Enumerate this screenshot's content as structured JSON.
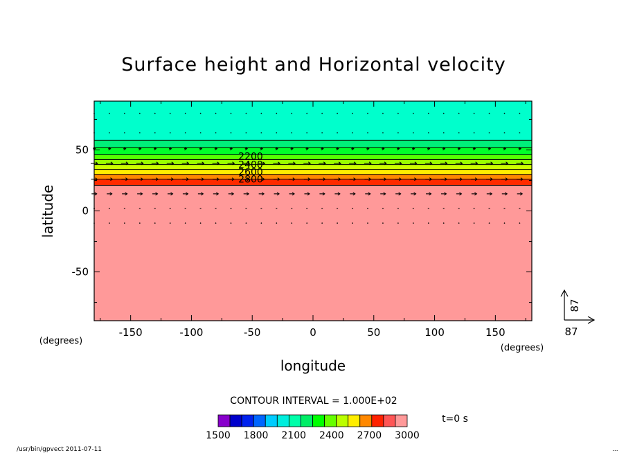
{
  "chart_data": {
    "type": "contour",
    "title": "Surface height and Horizontal velocity",
    "xlabel": "longitude",
    "ylabel": "latitude",
    "x_unit": "(degrees)",
    "y_unit": "(degrees)",
    "xlim": [
      -180,
      180
    ],
    "ylim": [
      -90,
      90
    ],
    "x_ticks": [
      "-150",
      "-100",
      "-50",
      "0",
      "50",
      "100",
      "150"
    ],
    "y_ticks": [
      "50",
      "0",
      "-50"
    ],
    "x_tick_values": [
      -150,
      -100,
      -50,
      0,
      50,
      100,
      150
    ],
    "y_tick_values": [
      50,
      0,
      -50
    ],
    "contour_interval_text": "CONTOUR INTERVAL = 1.000E+02",
    "contour_labels": [
      {
        "text": "2200",
        "lat": 45
      },
      {
        "text": "2400",
        "lat": 38
      },
      {
        "text": "2600",
        "lat": 32
      },
      {
        "text": "2800",
        "lat": 26
      }
    ],
    "height_bands": [
      {
        "lat_top": 90,
        "lat_bottom": 58,
        "color": "#00ffcc"
      },
      {
        "lat_top": 58,
        "lat_bottom": 52,
        "color": "#00f07a"
      },
      {
        "lat_top": 52,
        "lat_bottom": 46,
        "color": "#00ff2a"
      },
      {
        "lat_top": 46,
        "lat_bottom": 42,
        "color": "#55ff00"
      },
      {
        "lat_top": 42,
        "lat_bottom": 38,
        "color": "#99ff00"
      },
      {
        "lat_top": 38,
        "lat_bottom": 34,
        "color": "#ccff00"
      },
      {
        "lat_top": 34,
        "lat_bottom": 30,
        "color": "#ffee00"
      },
      {
        "lat_top": 30,
        "lat_bottom": 26,
        "color": "#ff8800"
      },
      {
        "lat_top": 26,
        "lat_bottom": 21,
        "color": "#ff2a00"
      },
      {
        "lat_top": 21,
        "lat_bottom": -90,
        "color": "#ff9999"
      }
    ],
    "contour_levels_lat": [
      58,
      52,
      46,
      42,
      38,
      34,
      30,
      26,
      21
    ],
    "vector_rows": [
      {
        "lat": 80,
        "u": 0
      },
      {
        "lat": 64,
        "u": 0.3
      },
      {
        "lat": 51,
        "u": 0.7
      },
      {
        "lat": 39,
        "u": 2.0
      },
      {
        "lat": 26,
        "u": 1.8
      },
      {
        "lat": 14,
        "u": 1.5
      },
      {
        "lat": 2,
        "u": 0.4
      },
      {
        "lat": -10,
        "u": 0
      }
    ],
    "reference_vector": {
      "x_label": "87",
      "y_label": "87"
    },
    "colorbar": {
      "colors": [
        "#8800cc",
        "#0000cc",
        "#0022ee",
        "#0066ff",
        "#00ccff",
        "#00eedd",
        "#00ffaa",
        "#00ee66",
        "#00ff00",
        "#66ff00",
        "#bbff00",
        "#ffee00",
        "#ff8800",
        "#ff2200",
        "#ff5555",
        "#ff9999"
      ],
      "labels": [
        "1500",
        "1800",
        "2100",
        "2400",
        "2700",
        "3000"
      ]
    },
    "time_text": "t=0 s"
  },
  "footer": {
    "left": "/usr/bin/gpvect  2011-07-11",
    "right": "..."
  }
}
